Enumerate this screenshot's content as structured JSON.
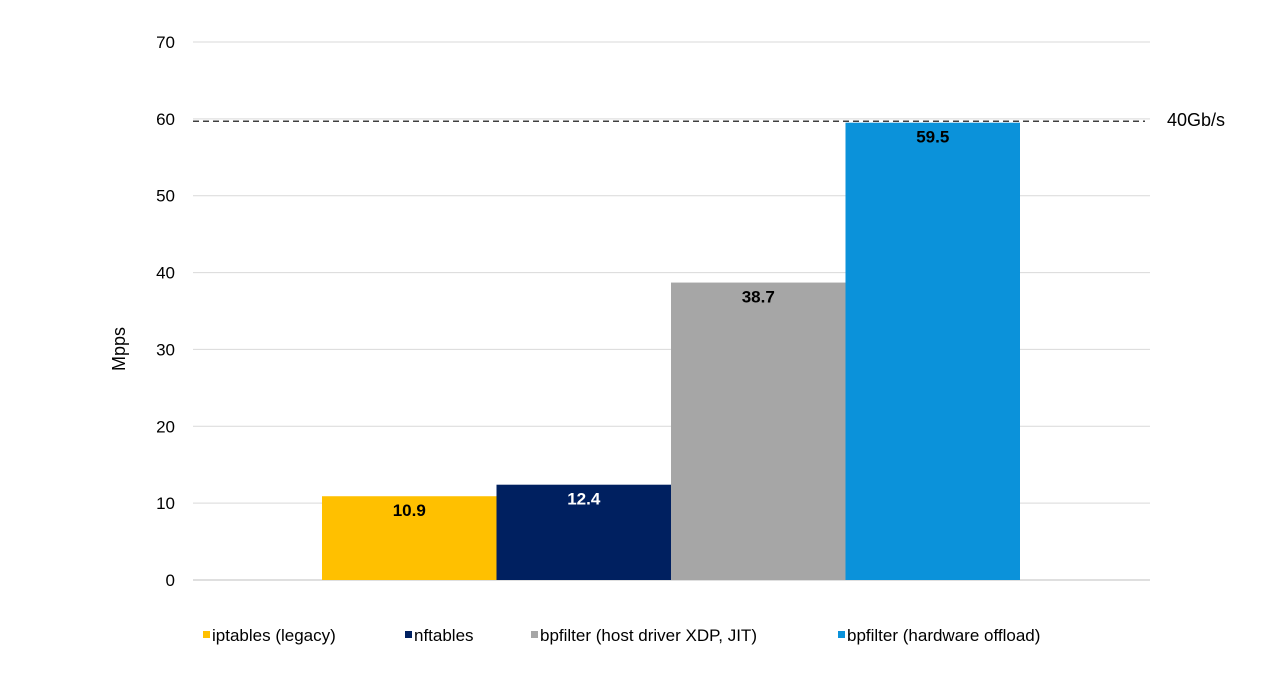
{
  "chart_data": {
    "type": "bar",
    "title": "",
    "xlabel": "",
    "ylabel": "Mpps",
    "ylim": [
      0,
      70
    ],
    "yticks": [
      0,
      10,
      20,
      30,
      40,
      50,
      60,
      70
    ],
    "grid": true,
    "legend_position": "bottom",
    "series": [
      {
        "name": "iptables (legacy)",
        "value": 10.9,
        "label": "10.9",
        "color": "#FFC000",
        "label_color": "#000000"
      },
      {
        "name": "nftables",
        "value": 12.4,
        "label": "12.4",
        "color": "#002060",
        "label_color": "#ffffff"
      },
      {
        "name": "bpfilter (host driver XDP, JIT)",
        "value": 38.7,
        "label": "38.7",
        "color": "#A6A6A6",
        "label_color": "#000000"
      },
      {
        "name": "bpfilter (hardware offload)",
        "value": 59.5,
        "label": "59.5",
        "color": "#0B92DA",
        "label_color": "#000000"
      }
    ],
    "reference_line": {
      "value": 59.5,
      "label": "40Gb/s",
      "style": "dashed"
    }
  }
}
